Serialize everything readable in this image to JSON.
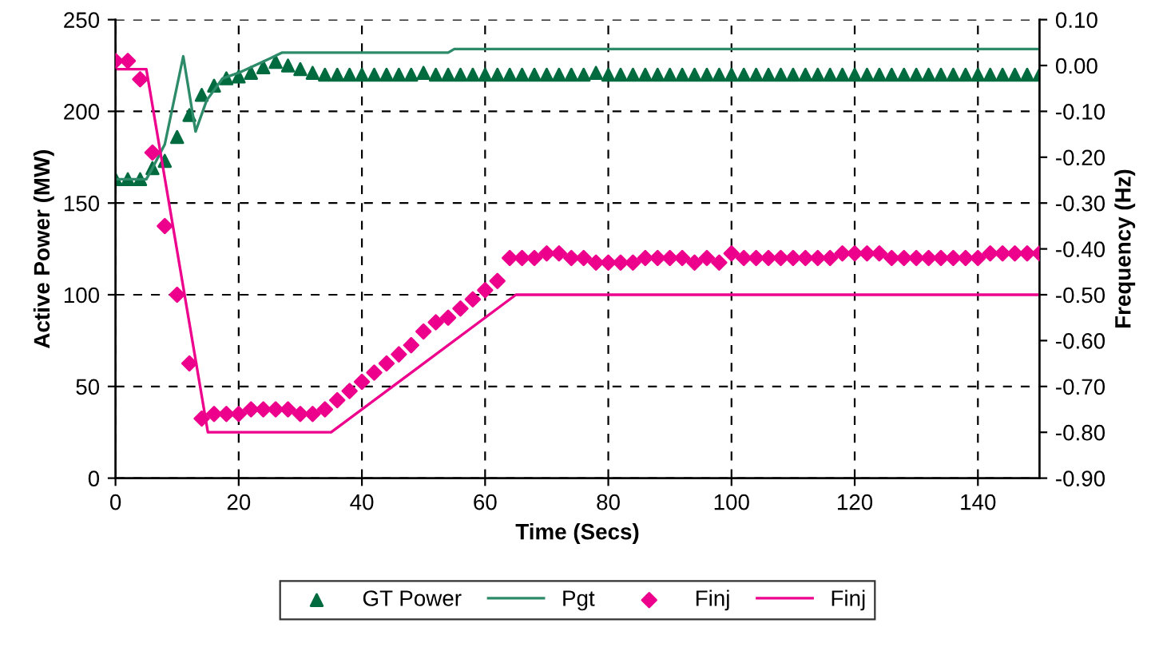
{
  "chart_data": {
    "type": "line",
    "xlabel": "Time (Secs)",
    "ylabel": "Active Power (MW)",
    "y2label": "Frequency (Hz)",
    "xlim": [
      0,
      150
    ],
    "xticks": [
      0,
      20,
      40,
      60,
      80,
      100,
      120,
      140
    ],
    "ylim": [
      0,
      250
    ],
    "yticks": [
      0,
      50,
      100,
      150,
      200,
      250
    ],
    "y2lim": [
      -0.9,
      0.1
    ],
    "y2ticks": [
      {
        "value": -0.9,
        "label": "-0.90"
      },
      {
        "value": -0.8,
        "label": "-0.80"
      },
      {
        "value": -0.7,
        "label": "-0.70"
      },
      {
        "value": -0.6,
        "label": "-0.60"
      },
      {
        "value": -0.5,
        "label": "-0.50"
      },
      {
        "value": -0.4,
        "label": "-0.40"
      },
      {
        "value": -0.3,
        "label": "-0.30"
      },
      {
        "value": -0.2,
        "label": "-0.20"
      },
      {
        "value": -0.1,
        "label": "-0.10"
      },
      {
        "value": 0,
        "label": "0.00"
      },
      {
        "value": 0.1,
        "label": "0.10"
      }
    ],
    "grid": true,
    "legend": "bottom",
    "series": [
      {
        "name": "GT Power",
        "type": "scatter",
        "marker": "triangle",
        "color": "#006b3f",
        "x": [
          0,
          2,
          4,
          6,
          8,
          10,
          12,
          14,
          16,
          18,
          20,
          22,
          24,
          26,
          28,
          30,
          32,
          34,
          36,
          38,
          40,
          42,
          44,
          46,
          48,
          50,
          52,
          54,
          56,
          58,
          60,
          62,
          64,
          66,
          68,
          70,
          72,
          74,
          76,
          78,
          80,
          82,
          84,
          86,
          88,
          90,
          92,
          94,
          96,
          98,
          100,
          102,
          104,
          106,
          108,
          110,
          112,
          114,
          116,
          118,
          120,
          122,
          124,
          126,
          128,
          130,
          132,
          134,
          136,
          138,
          140,
          142,
          144,
          146,
          148,
          150
        ],
        "values": [
          163,
          163,
          163,
          169,
          173,
          186,
          198,
          209,
          214,
          218,
          219,
          221,
          224,
          227,
          225,
          223,
          221,
          220,
          220,
          220,
          220,
          220,
          220,
          220,
          220,
          221,
          220,
          220,
          220,
          220,
          220,
          220,
          220,
          220,
          220,
          220,
          220,
          220,
          220,
          221,
          220,
          220,
          220,
          220,
          220,
          220,
          220,
          220,
          220,
          220,
          220,
          220,
          220,
          220,
          220,
          220,
          220,
          220,
          220,
          220,
          220,
          220,
          220,
          220,
          220,
          220,
          220,
          220,
          220,
          220,
          220,
          220,
          220,
          220,
          220,
          220
        ]
      },
      {
        "name": "Pgt",
        "color": "#2e8b6a",
        "x": [
          0,
          5,
          6,
          8,
          11,
          13,
          14.8,
          17.4,
          20,
          22.6,
          25.2,
          27,
          54,
          55,
          150
        ],
        "values": [
          163,
          163,
          169,
          182,
          230,
          189,
          206,
          218,
          221,
          225,
          229,
          232,
          232,
          234,
          234
        ]
      },
      {
        "name": "Finj",
        "type": "scatter",
        "marker": "diamond",
        "axis": "y2",
        "color": "#ec008c",
        "x": [
          0,
          2,
          4,
          6,
          8,
          10,
          12,
          14,
          16,
          18,
          20,
          22,
          24,
          26,
          28,
          30,
          32,
          34,
          36,
          38,
          40,
          42,
          44,
          46,
          48,
          50,
          52,
          54,
          56,
          58,
          60,
          62,
          64,
          66,
          68,
          70,
          72,
          74,
          76,
          78,
          80,
          82,
          84,
          86,
          88,
          90,
          92,
          94,
          96,
          98,
          100,
          102,
          104,
          106,
          108,
          110,
          112,
          114,
          116,
          118,
          120,
          122,
          124,
          126,
          128,
          130,
          132,
          134,
          136,
          138,
          140,
          142,
          144,
          146,
          148,
          150
        ],
        "values": [
          0.01,
          0.01,
          -0.03,
          -0.19,
          -0.35,
          -0.5,
          -0.65,
          -0.77,
          -0.76,
          -0.76,
          -0.76,
          -0.75,
          -0.75,
          -0.75,
          -0.75,
          -0.76,
          -0.76,
          -0.75,
          -0.73,
          -0.71,
          -0.69,
          -0.67,
          -0.65,
          -0.63,
          -0.61,
          -0.58,
          -0.56,
          -0.55,
          -0.53,
          -0.51,
          -0.49,
          -0.47,
          -0.42,
          -0.42,
          -0.42,
          -0.41,
          -0.41,
          -0.42,
          -0.42,
          -0.43,
          -0.43,
          -0.43,
          -0.43,
          -0.42,
          -0.42,
          -0.42,
          -0.42,
          -0.43,
          -0.42,
          -0.43,
          -0.41,
          -0.42,
          -0.42,
          -0.42,
          -0.42,
          -0.42,
          -0.42,
          -0.42,
          -0.42,
          -0.41,
          -0.41,
          -0.41,
          -0.41,
          -0.42,
          -0.42,
          -0.42,
          -0.42,
          -0.42,
          -0.42,
          -0.42,
          -0.42,
          -0.41,
          -0.41,
          -0.41,
          -0.41,
          -0.41
        ]
      },
      {
        "name": "Finj",
        "color": "#ec008c",
        "x": [
          0,
          5,
          15,
          35,
          65,
          150
        ],
        "values": [
          223,
          223,
          25,
          25,
          100,
          100
        ]
      }
    ]
  }
}
